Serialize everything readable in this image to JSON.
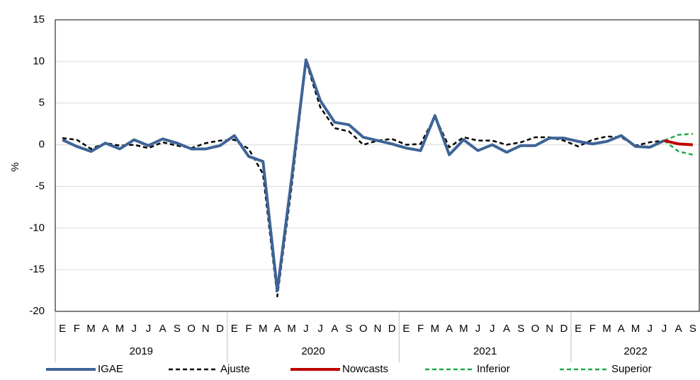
{
  "chart_data": {
    "type": "line",
    "y_label": "%",
    "categories": [
      "E",
      "F",
      "M",
      "A",
      "M",
      "J",
      "J",
      "A",
      "S",
      "O",
      "N",
      "D",
      "E",
      "F",
      "M",
      "A",
      "M",
      "J",
      "J",
      "A",
      "S",
      "O",
      "N",
      "D",
      "E",
      "F",
      "M",
      "A",
      "M",
      "J",
      "J",
      "A",
      "S",
      "O",
      "N",
      "D",
      "E",
      "F",
      "M",
      "A",
      "M",
      "J",
      "J",
      "A",
      "S"
    ],
    "category_groups": [
      "2019",
      "2020",
      "2021",
      "2022"
    ],
    "series": [
      {
        "name": "IGAE",
        "color": "#3e6497",
        "style": "solid",
        "width": 4,
        "values": [
          0.6,
          -0.2,
          -0.8,
          0.2,
          -0.5,
          0.6,
          -0.1,
          0.7,
          0.2,
          -0.5,
          -0.5,
          -0.1,
          1.1,
          -1.4,
          -2.0,
          -17.5,
          -4.0,
          10.2,
          5.3,
          2.7,
          2.4,
          0.9,
          0.5,
          0.1,
          -0.4,
          -0.7,
          3.5,
          -1.2,
          0.6,
          -0.7,
          0.0,
          -0.9,
          -0.1,
          -0.1,
          0.8,
          0.8,
          0.4,
          0.1,
          0.4,
          1.1,
          -0.2,
          -0.3,
          0.5,
          null,
          null
        ]
      },
      {
        "name": "Ajuste",
        "color": "#000000",
        "style": "dashed",
        "width": 2.5,
        "values": [
          0.8,
          0.6,
          -0.5,
          0.2,
          -0.1,
          0.0,
          -0.4,
          0.3,
          -0.1,
          -0.4,
          0.2,
          0.5,
          0.6,
          -0.5,
          -3.5,
          -18.2,
          -5.0,
          10.0,
          4.5,
          2.0,
          1.6,
          0.0,
          0.5,
          0.7,
          0.0,
          0.1,
          3.4,
          -0.3,
          0.9,
          0.5,
          0.5,
          0.0,
          0.3,
          0.9,
          0.9,
          0.5,
          -0.2,
          0.6,
          1.0,
          0.9,
          -0.1,
          0.3,
          0.5,
          null,
          null
        ]
      },
      {
        "name": "Nowcasts",
        "color": "#c00000",
        "style": "solid",
        "width": 4,
        "values": [
          null,
          null,
          null,
          null,
          null,
          null,
          null,
          null,
          null,
          null,
          null,
          null,
          null,
          null,
          null,
          null,
          null,
          null,
          null,
          null,
          null,
          null,
          null,
          null,
          null,
          null,
          null,
          null,
          null,
          null,
          null,
          null,
          null,
          null,
          null,
          null,
          null,
          null,
          null,
          null,
          null,
          null,
          0.5,
          0.1,
          0.0
        ]
      },
      {
        "name": "Inferior",
        "color": "#1fa84a",
        "style": "dashed",
        "width": 2.5,
        "values": [
          null,
          null,
          null,
          null,
          null,
          null,
          null,
          null,
          null,
          null,
          null,
          null,
          null,
          null,
          null,
          null,
          null,
          null,
          null,
          null,
          null,
          null,
          null,
          null,
          null,
          null,
          null,
          null,
          null,
          null,
          null,
          null,
          null,
          null,
          null,
          null,
          null,
          null,
          null,
          null,
          null,
          null,
          0.5,
          -0.8,
          -1.2
        ]
      },
      {
        "name": "Superior",
        "color": "#1fa84a",
        "style": "dashed",
        "width": 2.5,
        "values": [
          null,
          null,
          null,
          null,
          null,
          null,
          null,
          null,
          null,
          null,
          null,
          null,
          null,
          null,
          null,
          null,
          null,
          null,
          null,
          null,
          null,
          null,
          null,
          null,
          null,
          null,
          null,
          null,
          null,
          null,
          null,
          null,
          null,
          null,
          null,
          null,
          null,
          null,
          null,
          null,
          null,
          null,
          0.5,
          1.2,
          1.3
        ]
      }
    ],
    "ylim": [
      -20,
      15
    ],
    "yticks": [
      -20,
      -15,
      -10,
      -5,
      0,
      5,
      10,
      15
    ],
    "grid": true
  }
}
